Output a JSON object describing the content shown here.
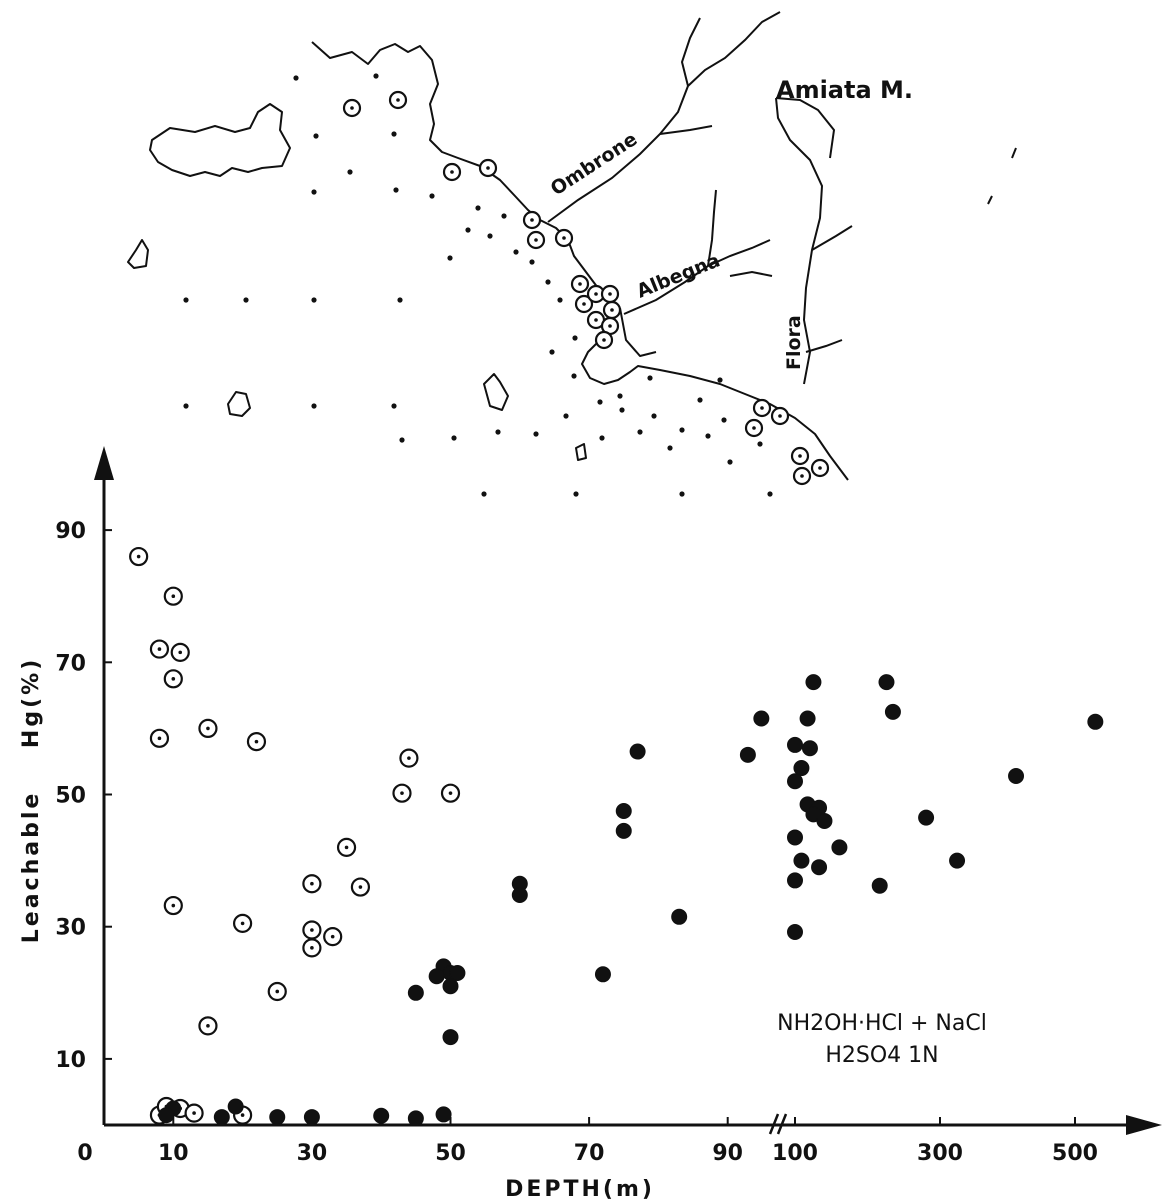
{
  "map": {
    "labels": {
      "ombrone": "Ombrone",
      "amiata": "Amiata M.",
      "albegna": "Albegna",
      "flora": "Flora"
    }
  },
  "chart_data": {
    "type": "scatter",
    "title": "",
    "xlabel": "DEPTH(m)",
    "ylabel": "Leachable    Hg(%)",
    "x_scale": "piecewise: linear 0–70 m, then roughly logarithmic 90–500 m after an axis break between 90 and 100",
    "x_ticks": [
      "0",
      "10",
      "30",
      "50",
      "70",
      "90",
      "100",
      "300",
      "500"
    ],
    "y_ticks": [
      "10",
      "30",
      "50",
      "70",
      "90"
    ],
    "ylim": [
      0,
      100
    ],
    "grid": false,
    "legend": "none",
    "annotation": {
      "line1": "NH2OH·HCl + NaCl",
      "line2": "H2SO4 1N"
    },
    "series": [
      {
        "marker": "open circle with center dot",
        "points": [
          [
            5,
            86
          ],
          [
            10,
            80
          ],
          [
            8,
            72
          ],
          [
            11,
            71.5
          ],
          [
            10,
            67.5
          ],
          [
            8,
            58.5
          ],
          [
            15,
            60
          ],
          [
            22,
            58
          ],
          [
            44,
            55.5
          ],
          [
            43,
            50.2
          ],
          [
            50,
            50.2
          ],
          [
            35,
            42
          ],
          [
            30,
            36.5
          ],
          [
            37,
            36
          ],
          [
            10,
            33.2
          ],
          [
            20,
            30.5
          ],
          [
            30,
            29.5
          ],
          [
            33,
            28.5
          ],
          [
            30,
            26.8
          ],
          [
            25,
            20.2
          ],
          [
            15,
            15
          ],
          [
            8,
            1.5
          ],
          [
            9,
            2.8
          ],
          [
            11,
            2.5
          ],
          [
            13,
            1.8
          ],
          [
            20,
            1.5
          ]
        ]
      },
      {
        "marker": "filled circle",
        "points": [
          [
            77,
            56.5
          ],
          [
            75,
            47.5
          ],
          [
            75,
            44.5
          ],
          [
            60,
            36.5
          ],
          [
            60,
            34.8
          ],
          [
            83,
            31.5
          ],
          [
            72,
            22.8
          ],
          [
            49,
            24
          ],
          [
            50,
            23
          ],
          [
            51,
            23
          ],
          [
            48,
            22.5
          ],
          [
            50,
            21
          ],
          [
            45,
            20
          ],
          [
            50,
            13.3
          ],
          [
            19,
            2.8
          ],
          [
            10,
            2.5
          ],
          [
            9,
            1.5
          ],
          [
            17,
            1.2
          ],
          [
            25,
            1.2
          ],
          [
            30,
            1.2
          ],
          [
            40,
            1.4
          ],
          [
            45,
            1
          ],
          [
            49,
            1.6
          ],
          [
            93,
            56
          ],
          [
            95,
            61.5
          ],
          [
            100,
            57.5
          ],
          [
            105,
            54
          ],
          [
            110,
            61.5
          ],
          [
            112,
            57
          ],
          [
            115,
            67
          ],
          [
            100,
            52
          ],
          [
            110,
            48.5
          ],
          [
            120,
            48
          ],
          [
            115,
            47
          ],
          [
            125,
            46
          ],
          [
            100,
            43.5
          ],
          [
            105,
            40
          ],
          [
            120,
            39
          ],
          [
            140,
            42
          ],
          [
            100,
            37
          ],
          [
            190,
            36.2
          ],
          [
            270,
            46.5
          ],
          [
            320,
            40
          ],
          [
            400,
            52.8
          ],
          [
            200,
            67
          ],
          [
            210,
            62.5
          ],
          [
            540,
            61
          ],
          [
            100,
            29.2
          ]
        ]
      }
    ]
  }
}
